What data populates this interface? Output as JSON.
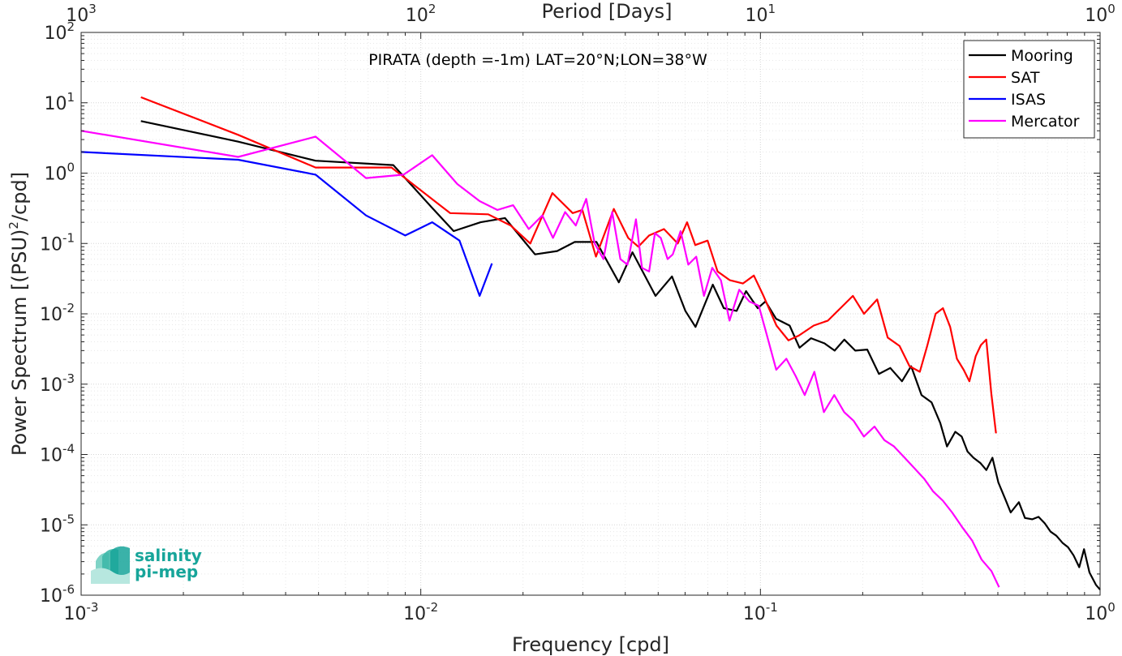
{
  "chart_data": {
    "type": "line",
    "title": "PIRATA (depth =-1m) LAT=20°N;LON=38°W",
    "xlabel": "Frequency [cpd]",
    "ylabel": "Power Spectrum [(PSU)^2/cpd]",
    "top_xlabel": "Period [Days]",
    "xscale": "log",
    "yscale": "log",
    "xlim": [
      0.001,
      1
    ],
    "ylim": [
      1e-06,
      100
    ],
    "grid": "on (major and minor, dotted)",
    "legend_position": "top-right",
    "x_ticks": [
      {
        "value": 0.001,
        "base": "10",
        "exp": "-3"
      },
      {
        "value": 0.01,
        "base": "10",
        "exp": "-2"
      },
      {
        "value": 0.1,
        "base": "10",
        "exp": "-1"
      },
      {
        "value": 1,
        "base": "10",
        "exp": "0"
      }
    ],
    "top_x_ticks": [
      {
        "freq": 0.001,
        "base": "10",
        "exp": "3"
      },
      {
        "freq": 0.01,
        "base": "10",
        "exp": "2"
      },
      {
        "freq": 0.1,
        "base": "10",
        "exp": "1"
      },
      {
        "freq": 1,
        "base": "10",
        "exp": "0"
      }
    ],
    "y_ticks": [
      {
        "value": 100,
        "base": "10",
        "exp": "2"
      },
      {
        "value": 10,
        "base": "10",
        "exp": "1"
      },
      {
        "value": 1,
        "base": "10",
        "exp": "0"
      },
      {
        "value": 0.1,
        "base": "10",
        "exp": "-1"
      },
      {
        "value": 0.01,
        "base": "10",
        "exp": "-2"
      },
      {
        "value": 0.001,
        "base": "10",
        "exp": "-3"
      },
      {
        "value": 0.0001,
        "base": "10",
        "exp": "-4"
      },
      {
        "value": 1e-05,
        "base": "10",
        "exp": "-5"
      },
      {
        "value": 1e-06,
        "base": "10",
        "exp": "-6"
      }
    ],
    "series": [
      {
        "name": "Mooring",
        "color": "#000000",
        "x": [
          0.0015,
          0.0029,
          0.0049,
          0.0083,
          0.0108,
          0.0125,
          0.015,
          0.0177,
          0.0217,
          0.0252,
          0.0284,
          0.0329,
          0.0383,
          0.042,
          0.0491,
          0.0549,
          0.0601,
          0.0644,
          0.0724,
          0.078,
          0.0851,
          0.0907,
          0.0982,
          0.1035,
          0.1112,
          0.1219,
          0.1303,
          0.1409,
          0.1545,
          0.1654,
          0.1766,
          0.1902,
          0.2063,
          0.2233,
          0.2412,
          0.2611,
          0.2778,
          0.2981,
          0.3191,
          0.3384,
          0.3542,
          0.3747,
          0.3912,
          0.4072,
          0.4239,
          0.4449,
          0.4626,
          0.4821,
          0.5018,
          0.5262,
          0.5455,
          0.5767,
          0.601,
          0.6317,
          0.6587,
          0.6872,
          0.715,
          0.7436,
          0.7763,
          0.8047,
          0.835,
          0.8682,
          0.8968,
          0.9307,
          0.9722,
          1.0
        ],
        "y": [
          5.5,
          2.8,
          1.5,
          1.3,
          0.32,
          0.15,
          0.2,
          0.23,
          0.07,
          0.078,
          0.105,
          0.105,
          0.028,
          0.075,
          0.018,
          0.034,
          0.011,
          0.0065,
          0.026,
          0.012,
          0.011,
          0.021,
          0.012,
          0.015,
          0.0085,
          0.0068,
          0.0033,
          0.0045,
          0.0038,
          0.003,
          0.0043,
          0.003,
          0.0031,
          0.0014,
          0.0017,
          0.0011,
          0.0018,
          0.0007,
          0.00055,
          0.00028,
          0.00013,
          0.00021,
          0.00018,
          0.00011,
          9e-05,
          7.5e-05,
          6e-05,
          9e-05,
          4e-05,
          2.3e-05,
          1.5e-05,
          2.1e-05,
          1.25e-05,
          1.2e-05,
          1.3e-05,
          1.05e-05,
          8e-06,
          7e-06,
          5.5e-06,
          4.8e-06,
          3.7e-06,
          2.5e-06,
          4.5e-06,
          2.1e-06,
          1.4e-06,
          1.2e-06
        ]
      },
      {
        "name": "SAT",
        "color": "#ff0000",
        "x": [
          0.0015,
          0.0029,
          0.0049,
          0.0082,
          0.0122,
          0.0158,
          0.0184,
          0.021,
          0.0244,
          0.028,
          0.0299,
          0.0328,
          0.037,
          0.0408,
          0.0437,
          0.047,
          0.052,
          0.0571,
          0.0608,
          0.0643,
          0.0699,
          0.0748,
          0.0813,
          0.0888,
          0.0956,
          0.1021,
          0.1115,
          0.1209,
          0.1297,
          0.1435,
          0.158,
          0.172,
          0.1872,
          0.2018,
          0.2206,
          0.2369,
          0.2568,
          0.2747,
          0.2946,
          0.3097,
          0.3278,
          0.3447,
          0.3619,
          0.3789,
          0.3965,
          0.4124,
          0.4303,
          0.4458,
          0.4622,
          0.4782,
          0.4938
        ],
        "y": [
          12,
          3.5,
          1.2,
          1.2,
          0.27,
          0.26,
          0.18,
          0.1,
          0.52,
          0.27,
          0.3,
          0.065,
          0.31,
          0.12,
          0.09,
          0.13,
          0.16,
          0.1,
          0.2,
          0.095,
          0.11,
          0.04,
          0.03,
          0.027,
          0.035,
          0.018,
          0.0068,
          0.0042,
          0.0049,
          0.0068,
          0.008,
          0.012,
          0.018,
          0.01,
          0.016,
          0.0046,
          0.0035,
          0.0018,
          0.0015,
          0.0035,
          0.01,
          0.012,
          0.0065,
          0.0023,
          0.0016,
          0.0011,
          0.0025,
          0.0036,
          0.0043,
          0.00074,
          0.0002
        ]
      },
      {
        "name": "ISAS",
        "color": "#0000ff",
        "x": [
          0.001,
          0.0029,
          0.0049,
          0.0069,
          0.009,
          0.0108,
          0.013,
          0.0149,
          0.0162
        ],
        "y": [
          2.0,
          1.55,
          0.95,
          0.25,
          0.13,
          0.2,
          0.11,
          0.018,
          0.052
        ]
      },
      {
        "name": "Mercator",
        "color": "#ff00ff",
        "x": [
          0.001,
          0.0029,
          0.0049,
          0.0069,
          0.0089,
          0.0108,
          0.0128,
          0.0149,
          0.0168,
          0.0187,
          0.0208,
          0.0228,
          0.0245,
          0.0266,
          0.0286,
          0.0307,
          0.0325,
          0.0345,
          0.0366,
          0.0387,
          0.0406,
          0.043,
          0.0448,
          0.047,
          0.0489,
          0.0509,
          0.0533,
          0.0552,
          0.0582,
          0.0613,
          0.0647,
          0.0682,
          0.0721,
          0.0765,
          0.0811,
          0.0866,
          0.0927,
          0.0989,
          0.1044,
          0.1113,
          0.1192,
          0.127,
          0.135,
          0.1441,
          0.1537,
          0.1649,
          0.1765,
          0.1882,
          0.2016,
          0.2166,
          0.2317,
          0.2474,
          0.2659,
          0.2831,
          0.3036,
          0.3222,
          0.3444,
          0.3667,
          0.3943,
          0.4198,
          0.448,
          0.4789,
          0.5043
        ],
        "y": [
          4.0,
          1.7,
          3.3,
          0.85,
          0.95,
          1.8,
          0.7,
          0.4,
          0.3,
          0.35,
          0.16,
          0.25,
          0.12,
          0.28,
          0.18,
          0.43,
          0.1,
          0.06,
          0.28,
          0.06,
          0.05,
          0.22,
          0.045,
          0.04,
          0.14,
          0.12,
          0.06,
          0.07,
          0.15,
          0.05,
          0.065,
          0.018,
          0.045,
          0.03,
          0.008,
          0.022,
          0.015,
          0.013,
          0.005,
          0.0016,
          0.0023,
          0.0013,
          0.0007,
          0.0015,
          0.0004,
          0.0007,
          0.0004,
          0.0003,
          0.00018,
          0.00025,
          0.00016,
          0.00013,
          9e-05,
          6.5e-05,
          4.5e-05,
          3e-05,
          2.2e-05,
          1.5e-05,
          9e-06,
          6e-06,
          3.2e-06,
          2.2e-06,
          1.3e-06
        ]
      }
    ]
  },
  "logo": {
    "line1": "salinity",
    "line2": "pi-mep",
    "color": "#17a59a"
  }
}
